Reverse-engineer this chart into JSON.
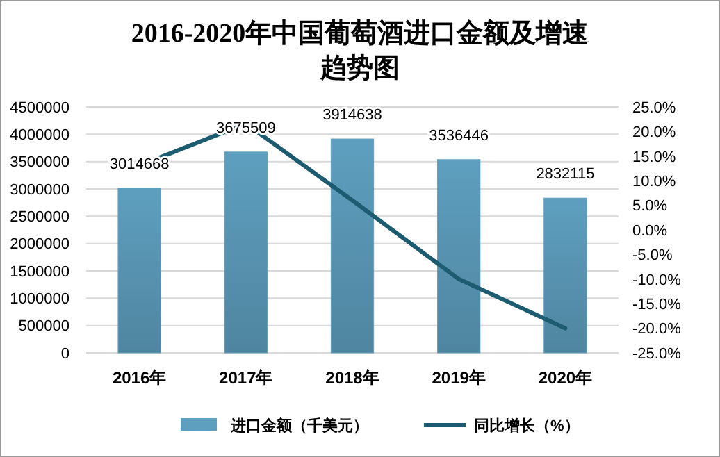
{
  "chart_data": {
    "type": "bar",
    "title": "2016-2020年中国葡萄酒进口金额及增速趋势图",
    "categories": [
      "2016年",
      "2017年",
      "2018年",
      "2019年",
      "2020年"
    ],
    "series": [
      {
        "name": "进口金额（千美元）",
        "color": "#5e9fbf",
        "values": [
          3014668,
          3675509,
          3914638,
          3536446,
          2832115
        ],
        "value_labels": [
          "3014668",
          "3675509",
          "3914638",
          "3536446",
          "2832115"
        ]
      },
      {
        "name": "同比增长（%）",
        "type": "line",
        "axis": "y2",
        "color": "#1d5b70",
        "values": [
          13.1,
          21.6,
          6.0,
          -10.0,
          -20.0
        ]
      }
    ],
    "ylim": [
      0,
      4500000
    ],
    "yticks": [
      0,
      500000,
      1000000,
      1500000,
      2000000,
      2500000,
      3000000,
      3500000,
      4000000,
      4500000
    ],
    "y2lim": [
      -25,
      25
    ],
    "y2ticks": [
      {
        "value": 25,
        "label": "25.0%"
      },
      {
        "value": 20,
        "label": "20.0%"
      },
      {
        "value": 15,
        "label": "15.0%"
      },
      {
        "value": 10,
        "label": "10.0%"
      },
      {
        "value": 5,
        "label": "5.0%"
      },
      {
        "value": 0,
        "label": "0.0%"
      },
      {
        "value": -5,
        "label": "-5.0%"
      },
      {
        "value": -10,
        "label": "-10.0%"
      },
      {
        "value": -15,
        "label": "-15.0%"
      },
      {
        "value": -20,
        "label": "-20.0%"
      },
      {
        "value": -25,
        "label": "-25.0%"
      }
    ],
    "grid": "y",
    "legend": "bottom",
    "marker": "none",
    "line_style": "solid"
  }
}
